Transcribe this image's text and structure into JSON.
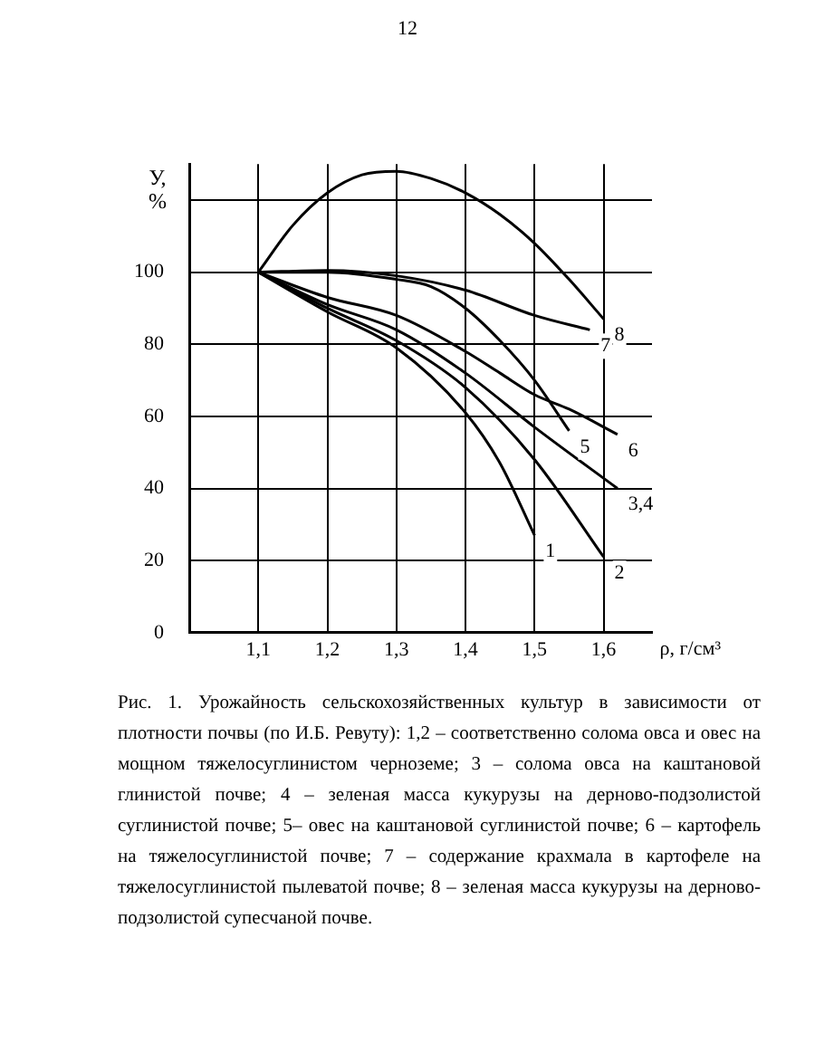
{
  "chart_data": {
    "type": "line",
    "xlabel": "ρ, г/см³",
    "ylabel": "У, %",
    "annotations": [
      "12",
      "Рис. 1. Урожайность сельскохозяйственных культур в зависимости от плотности почвы (по И.Б. Ревуту): 1,2 – соответственно солома овса и овес на мощном тяжелосуглинистом черноземе; 3 – солома овса на каштановой глинистой почве; 4 – зеленая масса кукурузы на дерново-подзолистой суглинистой почве; 5– овес на каштановой суглинистой почве; 6 – картофель на тяжелосуглинистой почве; 7 – содержание крахмала в картофеле на тяжелосуглинистой пылеватой почве; 8 – зеленая масса кукурузы на дерново-подзолистой супесчаной почве."
    ],
    "xlim": [
      1.0,
      1.67
    ],
    "ylim": [
      0,
      130
    ],
    "xticks": [
      {
        "value": 1.1,
        "label": "1,1"
      },
      {
        "value": 1.2,
        "label": "1,2"
      },
      {
        "value": 1.3,
        "label": "1,3"
      },
      {
        "value": 1.4,
        "label": "1,4"
      },
      {
        "value": 1.5,
        "label": "1,5"
      },
      {
        "value": 1.6,
        "label": "1,6"
      }
    ],
    "yticks": [
      0,
      20,
      40,
      60,
      80,
      100,
      {
        "value": 120,
        "label": null
      }
    ],
    "grid": true,
    "legend": false,
    "marker": "none",
    "line_style": "solid",
    "series": [
      {
        "name": "1",
        "color": "#000000",
        "x": [
          1.1,
          1.2,
          1.3,
          1.4,
          1.45,
          1.5
        ],
        "values": [
          100,
          89,
          79,
          61,
          47,
          27
        ]
      },
      {
        "name": "2",
        "color": "#000000",
        "x": [
          1.1,
          1.2,
          1.3,
          1.4,
          1.5,
          1.6
        ],
        "values": [
          100,
          90,
          81,
          68,
          48,
          21
        ]
      },
      {
        "name": "3,4",
        "color": "#000000",
        "x": [
          1.1,
          1.2,
          1.3,
          1.4,
          1.5,
          1.62
        ],
        "values": [
          100,
          91,
          84,
          72,
          57,
          40
        ]
      },
      {
        "name": "5",
        "color": "#000000",
        "x": [
          1.1,
          1.2,
          1.3,
          1.35,
          1.4,
          1.45,
          1.5,
          1.55
        ],
        "values": [
          100,
          100,
          98,
          96,
          90,
          81,
          70,
          56
        ]
      },
      {
        "name": "6",
        "color": "#000000",
        "x": [
          1.1,
          1.2,
          1.3,
          1.4,
          1.45,
          1.5,
          1.55,
          1.62
        ],
        "values": [
          100,
          93,
          88,
          78,
          72,
          66,
          62,
          55
        ]
      },
      {
        "name": "7",
        "color": "#000000",
        "x": [
          1.1,
          1.2,
          1.3,
          1.4,
          1.5,
          1.58
        ],
        "values": [
          100,
          100.5,
          99,
          95,
          88,
          84
        ]
      },
      {
        "name": "8",
        "color": "#000000",
        "x": [
          1.1,
          1.15,
          1.2,
          1.25,
          1.3,
          1.35,
          1.4,
          1.45,
          1.5,
          1.55,
          1.6
        ],
        "values": [
          100,
          113,
          122,
          127,
          128,
          126,
          122,
          116,
          108,
          98,
          87
        ]
      }
    ]
  }
}
